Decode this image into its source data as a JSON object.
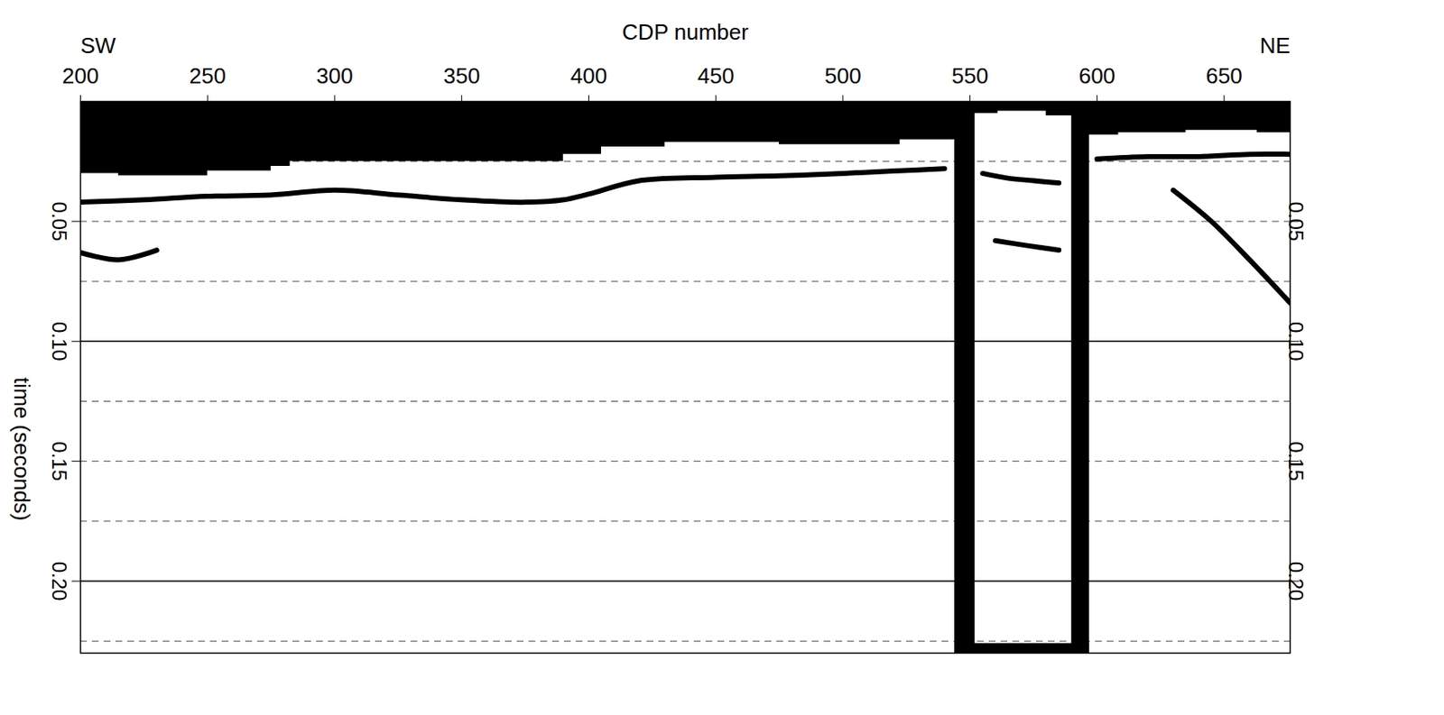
{
  "chart_data": {
    "type": "seismic_section",
    "x_label": "CDP number",
    "y_label": "time (seconds)",
    "direction_labels": [
      "SW",
      "NE"
    ],
    "xlim": [
      200,
      676
    ],
    "xticks": [
      200,
      250,
      300,
      350,
      400,
      450,
      500,
      550,
      600,
      650
    ],
    "ylim": [
      0,
      0.23
    ],
    "yticks": [
      0.05,
      {
        "value": 0.1,
        "label": "0.10"
      },
      0.15,
      {
        "value": 0.2,
        "label": "0.20"
      }
    ],
    "grid": true,
    "dashed_gridlines": [
      0.025,
      0.05,
      0.075,
      0.125,
      0.15,
      0.175,
      0.225
    ],
    "solid_gridlines": [
      0.1,
      0.2
    ],
    "color": "#000000",
    "muted_top": {
      "x": [
        200,
        230,
        270,
        280,
        285,
        330,
        380,
        400,
        410,
        450,
        500,
        545,
        552,
        570,
        590,
        597,
        620,
        650,
        676
      ],
      "time": [
        0.03,
        0.031,
        0.029,
        0.027,
        0.025,
        0.025,
        0.025,
        0.022,
        0.019,
        0.017,
        0.018,
        0.016,
        0.005,
        0.004,
        0.006,
        0.014,
        0.013,
        0.012,
        0.013
      ]
    },
    "muted_bands": [
      {
        "x1": 544,
        "x2": 552,
        "y1": 0,
        "y2": 0.23
      },
      {
        "x1": 590,
        "x2": 597,
        "y1": 0,
        "y2": 0.23
      },
      {
        "x1": 544,
        "x2": 597,
        "y1": 0.226,
        "y2": 0.23
      }
    ],
    "reflectors": [
      {
        "x": [
          200,
          225,
          250,
          275,
          300,
          325,
          350,
          375,
          390,
          400,
          420,
          450,
          475,
          500,
          520,
          540
        ],
        "y": [
          0.042,
          0.041,
          0.0395,
          0.039,
          0.037,
          0.039,
          0.041,
          0.042,
          0.041,
          0.0386,
          0.033,
          0.0316,
          0.031,
          0.03,
          0.029,
          0.028
        ]
      },
      {
        "x": [
          555,
          565,
          575,
          585
        ],
        "y": [
          0.03,
          0.032,
          0.033,
          0.034
        ]
      },
      {
        "x": [
          600,
          620,
          640,
          660,
          676
        ],
        "y": [
          0.024,
          0.023,
          0.023,
          0.022,
          0.022
        ]
      },
      {
        "x": [
          630,
          645,
          660,
          676
        ],
        "y": [
          0.037,
          0.05,
          0.066,
          0.084
        ]
      },
      {
        "x": [
          560,
          572,
          585
        ],
        "y": [
          0.058,
          0.06,
          0.062
        ]
      },
      {
        "x": [
          200,
          215,
          230
        ],
        "y": [
          0.063,
          0.066,
          0.062
        ]
      }
    ]
  }
}
